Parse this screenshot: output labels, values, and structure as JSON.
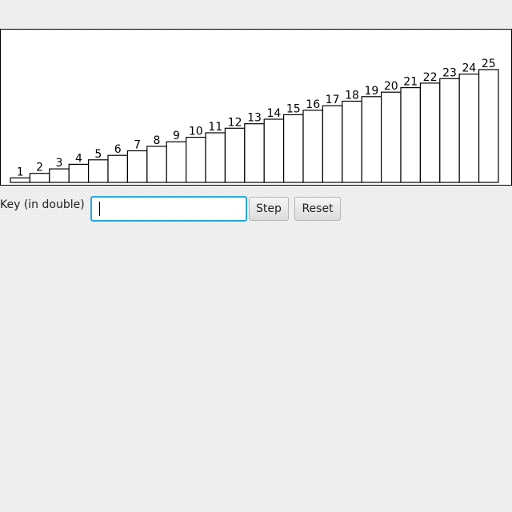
{
  "chart_data": {
    "type": "bar",
    "categories": [
      "1",
      "2",
      "3",
      "4",
      "5",
      "6",
      "7",
      "8",
      "9",
      "10",
      "11",
      "12",
      "13",
      "14",
      "15",
      "16",
      "17",
      "18",
      "19",
      "20",
      "21",
      "22",
      "23",
      "24",
      "25"
    ],
    "values": [
      1,
      2,
      3,
      4,
      5,
      6,
      7,
      8,
      9,
      10,
      11,
      12,
      13,
      14,
      15,
      16,
      17,
      18,
      19,
      20,
      21,
      22,
      23,
      24,
      25
    ],
    "data_labels": [
      "1",
      "2",
      "3",
      "4",
      "5",
      "6",
      "7",
      "8",
      "9",
      "10",
      "11",
      "12",
      "13",
      "14",
      "15",
      "16",
      "17",
      "18",
      "19",
      "20",
      "21",
      "22",
      "23",
      "24",
      "25"
    ],
    "ylim": [
      0,
      25
    ],
    "grid": false,
    "bar_fill": "#ffffff",
    "bar_stroke": "#000000"
  },
  "controls": {
    "key_label": "Key (in double)",
    "key_input_value": "",
    "step_label": "Step",
    "reset_label": "Reset"
  },
  "colors": {
    "input_focus_border": "#29a8e0",
    "panel_background": "#ffffff"
  }
}
